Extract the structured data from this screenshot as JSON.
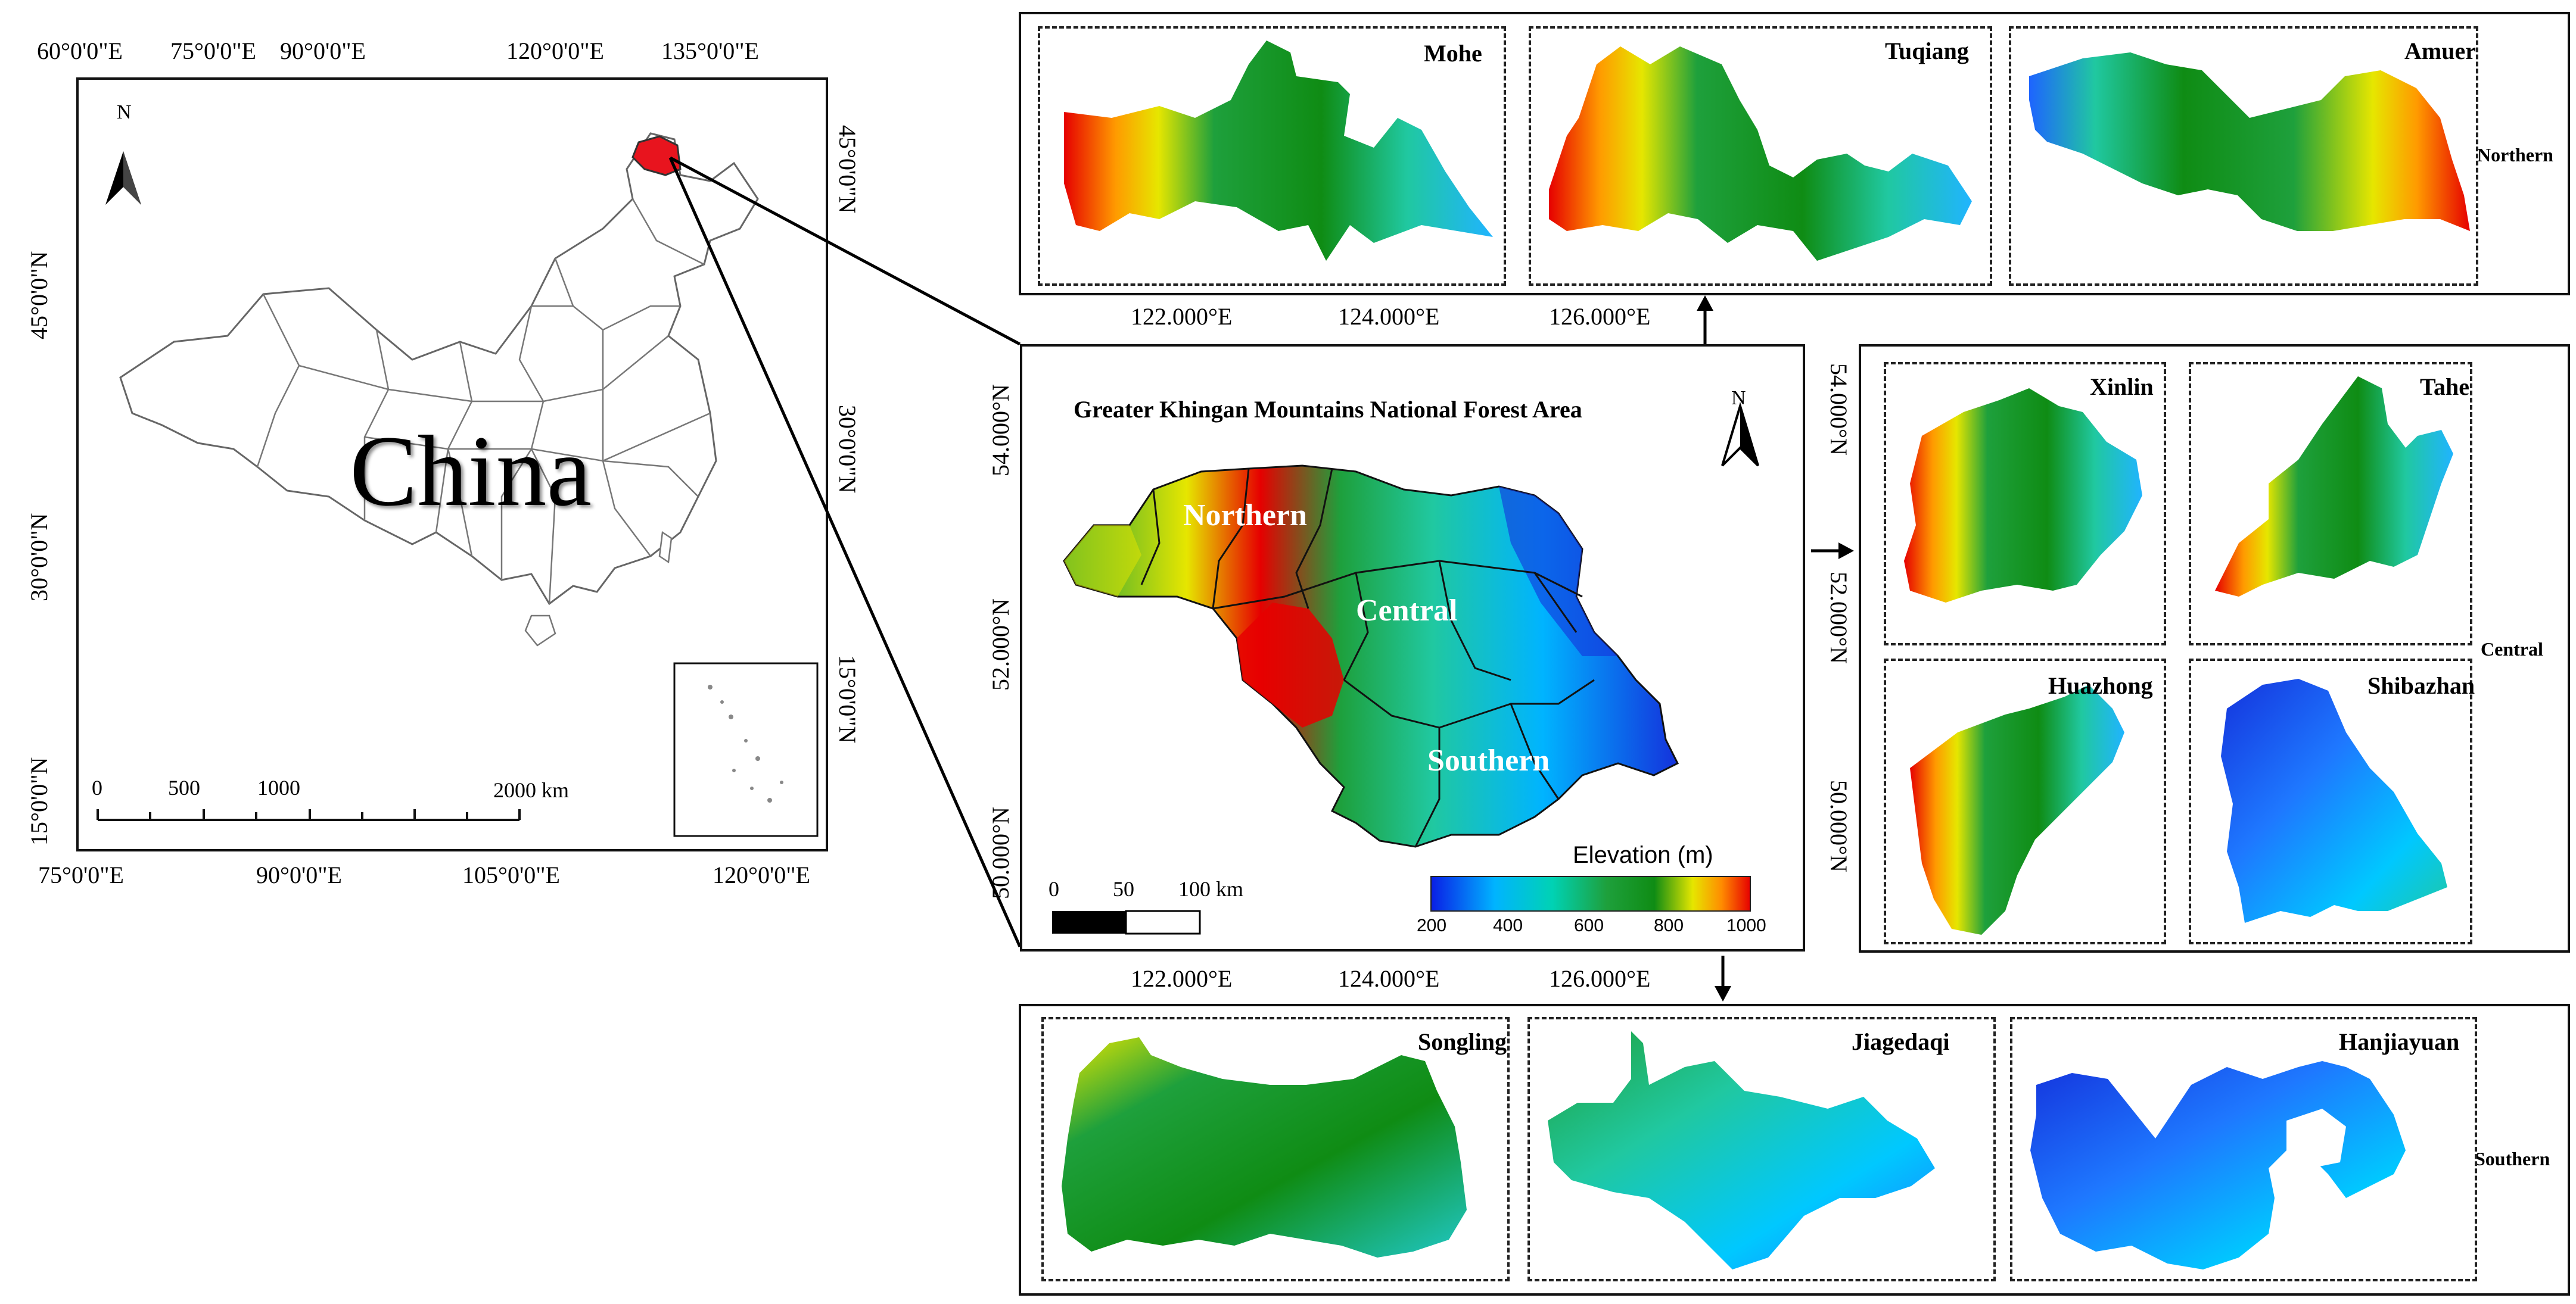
{
  "china_panel": {
    "map_label": "China",
    "north_label": "N",
    "top_lon_ticks": [
      "60°0'0\"E",
      "75°0'0\"E",
      "90°0'0\"E",
      "120°0'0\"E",
      "135°0'0\"E"
    ],
    "bottom_lon_ticks": [
      "75°0'0\"E",
      "90°0'0\"E",
      "105°0'0\"E",
      "120°0'0\"E"
    ],
    "left_lat_ticks": [
      "45°0'0\"N",
      "30°0'0\"N",
      "15°0'0\"N"
    ],
    "right_lat_ticks": [
      "45°0'0\"N",
      "30°0'0\"N",
      "15°0'0\"N"
    ],
    "scale_labels": [
      "0",
      "500",
      "1000",
      "2000 km"
    ]
  },
  "center_panel": {
    "title": "Greater Khingan Mountains National Forest Area",
    "north_label": "N",
    "regions": [
      "Northern",
      "Central",
      "Southern"
    ],
    "top_lon_ticks": [
      "122.000°E",
      "124.000°E",
      "126.000°E"
    ],
    "bottom_lon_ticks": [
      "122.000°E",
      "124.000°E",
      "126.000°E"
    ],
    "left_lat_ticks": [
      "54.000°N",
      "52.000°N",
      "50.000°N"
    ],
    "right_lat_ticks": [
      "54.000°N",
      "52.000°N",
      "50.000°N"
    ],
    "scale_labels": [
      "0",
      "50",
      "100 km"
    ],
    "legend": {
      "title": "Elevation (m)",
      "ticks": [
        "200",
        "400",
        "600",
        "800",
        "1000"
      ],
      "colors": [
        "#0a1ee6",
        "#00b4ff",
        "#00d2b4",
        "#1ea03c",
        "#0f8c14",
        "#e6e600",
        "#ff8c00",
        "#e60000"
      ]
    }
  },
  "northern_group": {
    "label": "Northern",
    "subareas": [
      "Mohe",
      "Tuqiang",
      "Amuer"
    ]
  },
  "central_group": {
    "label": "Central",
    "subareas": [
      "Xinlin",
      "Tahe",
      "Huazhong",
      "Shibazhan"
    ]
  },
  "southern_group": {
    "label": "Southern",
    "subareas": [
      "Songling",
      "Jiagedaqi",
      "Hanjiayuan"
    ]
  },
  "colors": {
    "boundary_highlight": "#e8141e",
    "frame": "#111111"
  }
}
